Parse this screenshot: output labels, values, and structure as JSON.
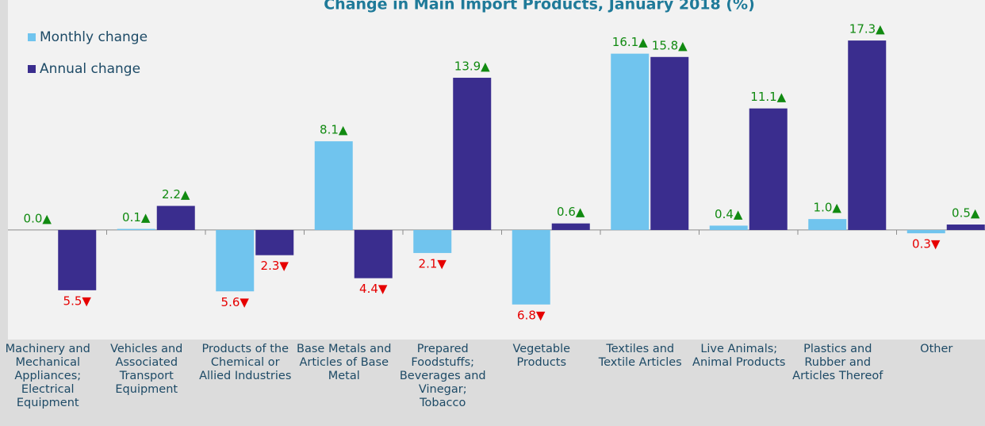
{
  "chart_data": {
    "type": "bar",
    "title": "Change in Main Import Products, January 2018 (%)",
    "categories": [
      "Machinery and Mechanical Appliances; Electrical Equipment",
      "Vehicles and Associated Transport Equipment",
      "Products of the Chemical or Allied Industries",
      "Base Metals and Articles of Base Metal",
      "Prepared Foodstuffs; Beverages and Vinegar; Tobacco",
      "Vegetable Products",
      "Textiles and Textile Articles",
      "Live Animals; Animal Products",
      "Plastics and Rubber and Articles Thereof",
      "Other"
    ],
    "series": [
      {
        "name": "Monthly change",
        "color": "#70c4ee",
        "values": [
          0.0,
          0.1,
          -5.6,
          8.1,
          -2.1,
          -6.8,
          16.1,
          0.4,
          1.0,
          -0.3
        ],
        "value_labels": [
          "0.0▲",
          "0.1▲",
          "5.6▼",
          "8.1▲",
          "2.1▼",
          "6.8▼",
          "16.1▲",
          "0.4▲",
          "1.0▲",
          "0.3▼"
        ]
      },
      {
        "name": "Annual change",
        "color": "#3a2d8e",
        "values": [
          -5.5,
          2.2,
          -2.3,
          -4.4,
          13.9,
          0.6,
          15.8,
          11.1,
          17.3,
          0.5
        ],
        "value_labels": [
          "5.5▼",
          "2.2▲",
          "2.3▼",
          "4.4▼",
          "13.9▲",
          "0.6▲",
          "15.8▲",
          "11.1▲",
          "17.3▲",
          "0.5▲"
        ]
      }
    ],
    "ylim": [
      -10,
      21
    ],
    "label_colors": {
      "up": "#118a11",
      "down": "#e60000"
    },
    "legend": "top-left"
  }
}
